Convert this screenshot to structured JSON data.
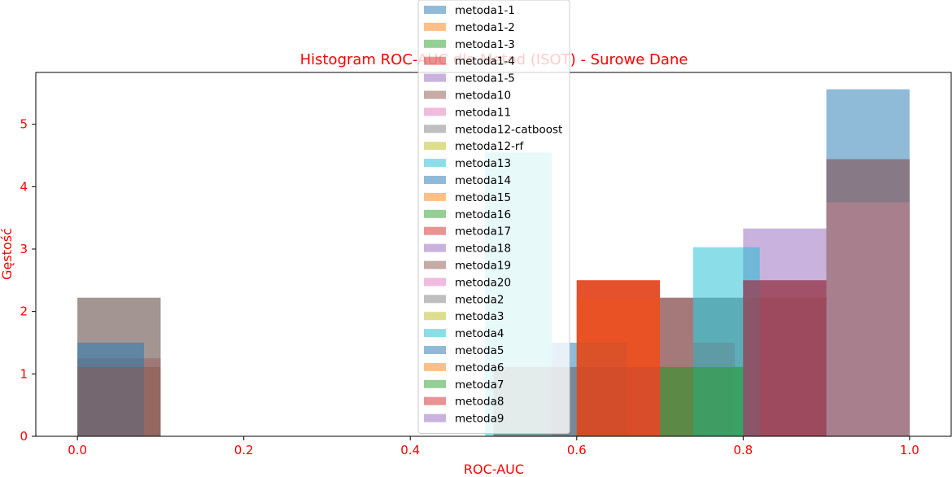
{
  "chart_data": {
    "type": "histogram",
    "title": "Histogram ROC-AUC dla Metod (ISOT) - Surowe Dane",
    "xlabel": "ROC-AUC",
    "ylabel": "Gęstość",
    "xlim": [
      -0.05,
      1.05
    ],
    "ylim": [
      0,
      5.83
    ],
    "xticks": [
      "0.0",
      "0.2",
      "0.4",
      "0.6",
      "0.8",
      "1.0"
    ],
    "yticks": [
      "0",
      "1",
      "2",
      "3",
      "4",
      "5"
    ],
    "label_color": "#ff0000",
    "legend_position": "upper center",
    "series": [
      {
        "name": "metoda1-1",
        "color": "#1f77b4",
        "bins": [
          [
            0.9,
            1.0,
            5.56
          ]
        ]
      },
      {
        "name": "metoda1-2",
        "color": "#ff7f0e",
        "bins": [
          [
            0.6,
            0.7,
            2.5
          ]
        ]
      },
      {
        "name": "metoda1-3",
        "color": "#2ca02c",
        "bins": [
          [
            0.7,
            0.8,
            1.11
          ]
        ]
      },
      {
        "name": "metoda1-4",
        "color": "#d62728",
        "bins": [
          [
            0.0,
            0.1,
            1.25
          ],
          [
            0.6,
            0.7,
            2.5
          ],
          [
            0.8,
            0.9,
            2.5
          ],
          [
            0.9,
            1.0,
            2.5
          ]
        ]
      },
      {
        "name": "metoda1-5",
        "color": "#9467bd",
        "bins": [
          [
            0.8,
            0.9,
            3.33
          ],
          [
            0.9,
            1.0,
            4.44
          ]
        ]
      },
      {
        "name": "metoda10",
        "color": "#8c564b",
        "bins": [
          [
            0.0,
            0.1,
            2.22
          ],
          [
            0.5,
            0.6,
            1.11
          ],
          [
            0.6,
            0.7,
            1.11
          ],
          [
            0.8,
            0.9,
            2.22
          ],
          [
            0.9,
            1.0,
            4.44
          ]
        ]
      },
      {
        "name": "metoda11",
        "color": "#e377c2",
        "bins": [
          [
            0.6,
            0.7,
            1.11
          ],
          [
            0.8,
            0.9,
            2.22
          ],
          [
            0.9,
            1.0,
            3.75
          ]
        ]
      },
      {
        "name": "metoda12-catboost",
        "color": "#7f7f7f",
        "bins": [
          [
            0.0,
            0.1,
            2.22
          ],
          [
            0.7,
            0.8,
            2.22
          ],
          [
            0.9,
            1.0,
            4.44
          ]
        ]
      },
      {
        "name": "metoda12-rf",
        "color": "#bcbd22",
        "bins": [
          [
            0.9,
            1.0,
            3.75
          ]
        ]
      },
      {
        "name": "metoda13",
        "color": "#17becf",
        "bins": [
          [
            0.49,
            0.57,
            4.55
          ]
        ]
      },
      {
        "name": "metoda14",
        "color": "#1f77b4",
        "bins": [
          [
            0.0,
            0.08,
            1.5
          ],
          [
            0.57,
            0.66,
            1.5
          ]
        ]
      },
      {
        "name": "metoda15",
        "color": "#ff7f0e",
        "bins": [
          [
            0.6,
            0.7,
            2.22
          ]
        ]
      },
      {
        "name": "metoda16",
        "color": "#2ca02c",
        "bins": [
          [
            0.7,
            0.8,
            1.11
          ]
        ]
      },
      {
        "name": "metoda17",
        "color": "#d62728",
        "bins": [
          [
            0.7,
            0.74,
            2.22
          ],
          [
            0.74,
            0.79,
            1.5
          ]
        ]
      },
      {
        "name": "metoda18",
        "color": "#9467bd",
        "bins": [
          [
            0.9,
            1.0,
            3.75
          ]
        ]
      },
      {
        "name": "metoda19",
        "color": "#8c564b",
        "bins": [
          [
            0.0,
            0.1,
            1.11
          ],
          [
            0.6,
            0.7,
            1.11
          ],
          [
            0.8,
            0.9,
            2.22
          ],
          [
            0.9,
            1.0,
            3.75
          ]
        ]
      },
      {
        "name": "metoda20",
        "color": "#e377c2",
        "bins": [
          [
            0.9,
            1.0,
            3.75
          ]
        ]
      },
      {
        "name": "metoda2",
        "color": "#7f7f7f",
        "bins": [
          [
            0.5,
            0.6,
            1.11
          ],
          [
            0.7,
            0.8,
            2.22
          ]
        ]
      },
      {
        "name": "metoda3",
        "color": "#bcbd22",
        "bins": [
          [
            0.9,
            1.0,
            3.75
          ]
        ]
      },
      {
        "name": "metoda4",
        "color": "#17becf",
        "bins": [
          [
            0.74,
            0.82,
            3.03
          ]
        ]
      },
      {
        "name": "metoda5",
        "color": "#1f77b4",
        "bins": [
          [
            0.8,
            0.9,
            2.5
          ]
        ]
      },
      {
        "name": "metoda6",
        "color": "#ff7f0e",
        "bins": [
          [
            0.6,
            0.7,
            2.5
          ]
        ]
      },
      {
        "name": "metoda7",
        "color": "#2ca02c",
        "bins": [
          [
            0.7,
            0.8,
            1.11
          ]
        ]
      },
      {
        "name": "metoda8",
        "color": "#d62728",
        "bins": [
          [
            0.6,
            0.7,
            2.5
          ],
          [
            0.8,
            0.9,
            2.5
          ]
        ]
      },
      {
        "name": "metoda9",
        "color": "#9467bd",
        "bins": [
          [
            0.9,
            1.0,
            3.75
          ]
        ]
      }
    ]
  }
}
